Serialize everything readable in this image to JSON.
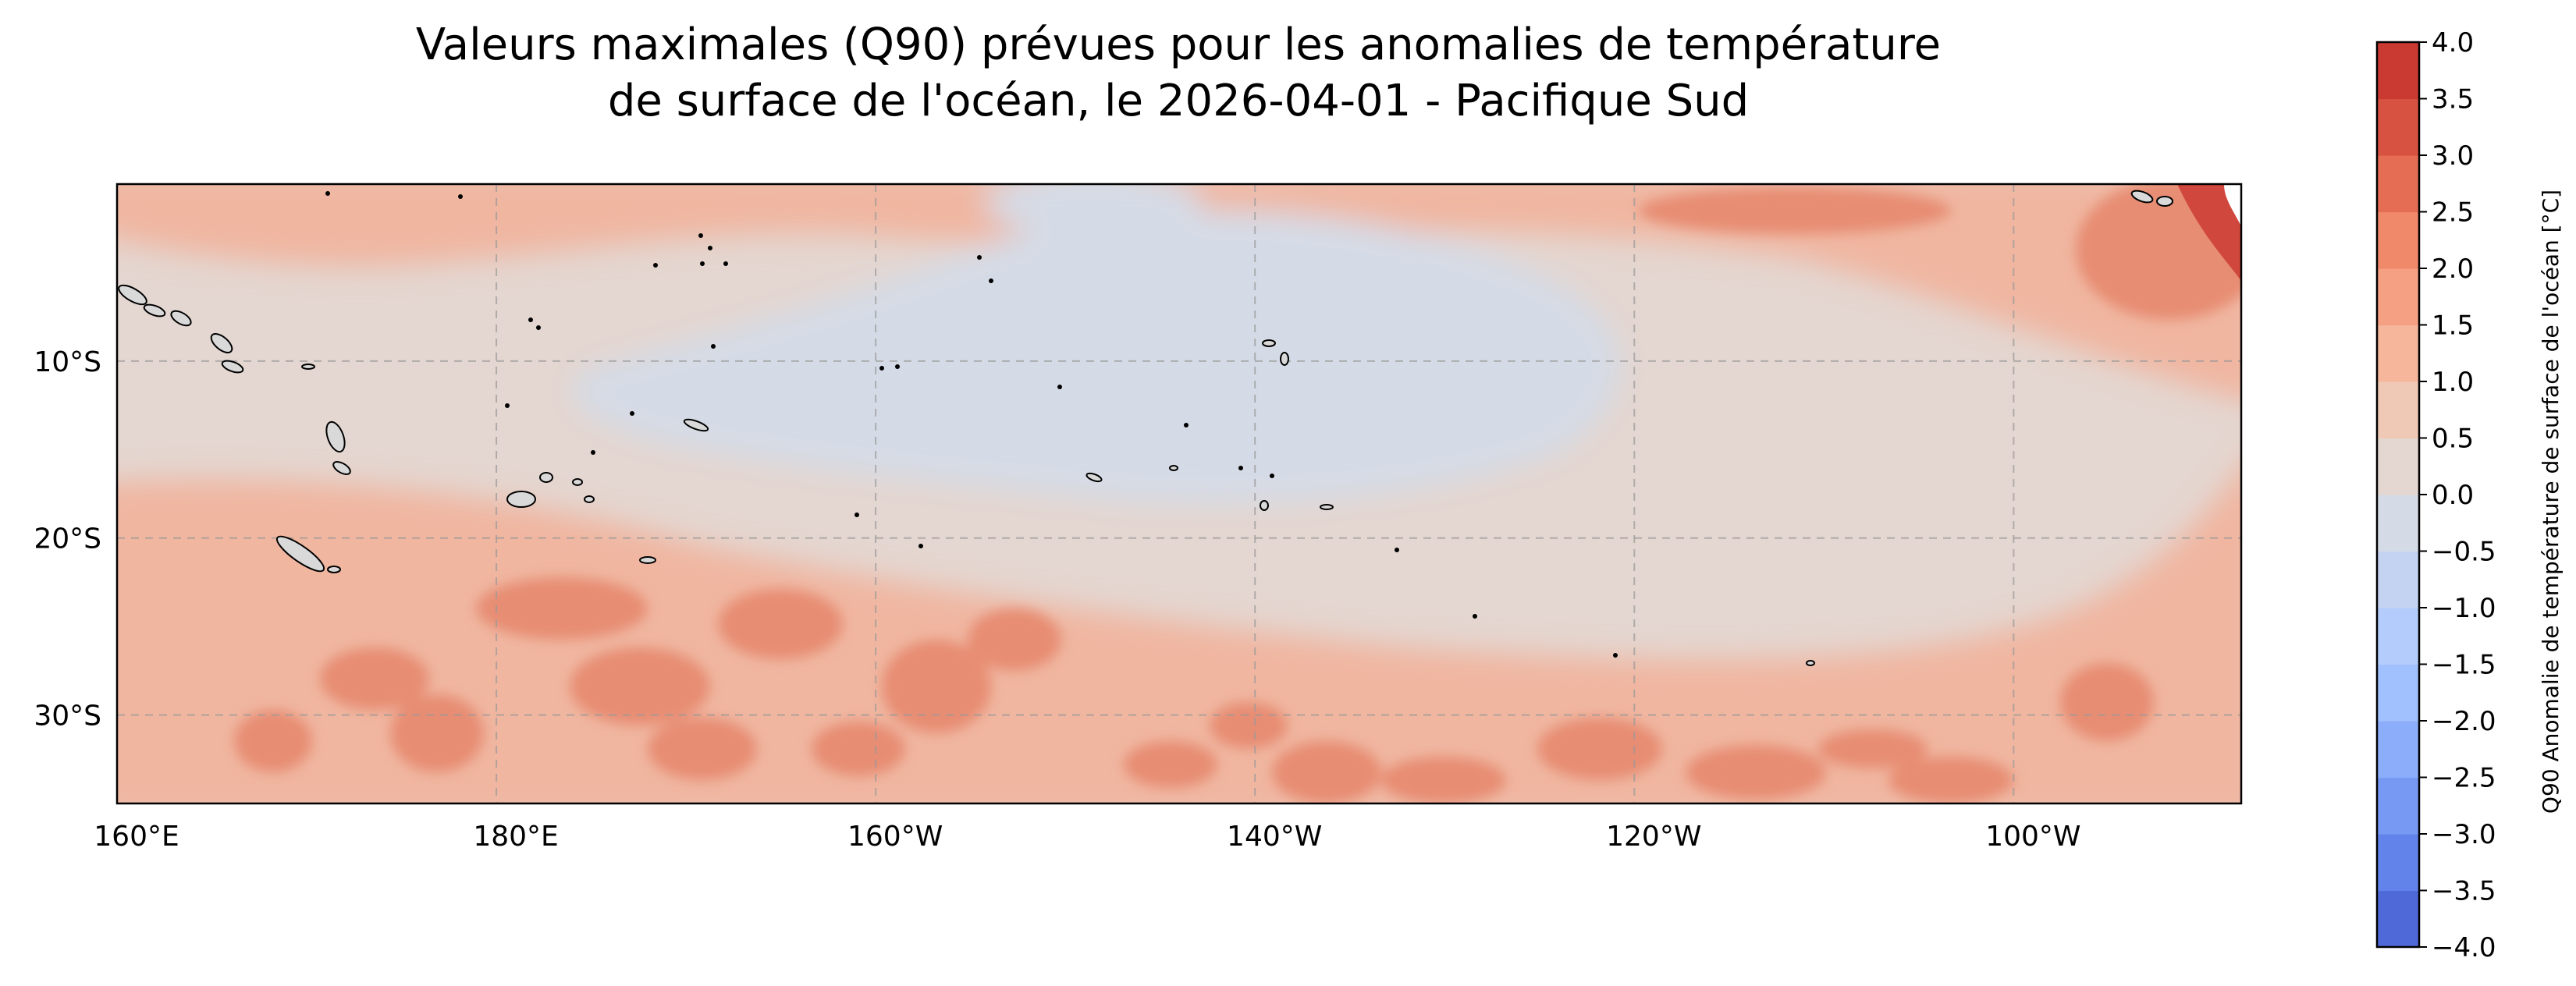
{
  "title": {
    "line1": "Valeurs maximales (Q90) prévues pour les anomalies de température",
    "line2": "de surface de l'océan, le 2026-04-01 - Pacifique Sud"
  },
  "map": {
    "projection": "PlateCarree",
    "lon_range": [
      160,
      272
    ],
    "lat_range": [
      -35,
      0
    ],
    "gridlines": true,
    "x_ticks": [
      {
        "lon": 160,
        "label": "160°E"
      },
      {
        "lon": 180,
        "label": "180°E"
      },
      {
        "lon": 200,
        "label": "160°W"
      },
      {
        "lon": 220,
        "label": "140°W"
      },
      {
        "lon": 240,
        "label": "120°W"
      },
      {
        "lon": 260,
        "label": "100°W"
      }
    ],
    "y_ticks": [
      {
        "lat": -10,
        "label": "10°S"
      },
      {
        "lat": -20,
        "label": "20°S"
      },
      {
        "lat": -30,
        "label": "30°S"
      }
    ],
    "regions": [
      {
        "name": "background",
        "color": "#e4d6d0"
      },
      {
        "name": "cool-equatorial-tongue",
        "color": "#d5dbe6"
      },
      {
        "name": "warm-southern-band",
        "color": "#f0b6a0"
      },
      {
        "name": "very-warm-eddies",
        "color": "#e78d73"
      },
      {
        "name": "coastal-maximum",
        "color": "#d0473e"
      }
    ]
  },
  "colorbar": {
    "label": "Q90 Anomalie de température de surface de l'océan [°C]",
    "vmin": -4.0,
    "vmax": 4.0,
    "step": 0.5,
    "tick_labels": [
      "−4.0",
      "−3.5",
      "−3.0",
      "−2.5",
      "−2.0",
      "−1.5",
      "−1.0",
      "−0.5",
      "0.0",
      "0.5",
      "1.0",
      "1.5",
      "2.0",
      "2.5",
      "3.0",
      "3.5",
      "4.0"
    ],
    "colors": [
      "#4f69d9",
      "#6283e9",
      "#7799f3",
      "#8caefa",
      "#a1c0fe",
      "#b4ccfb",
      "#c5d3f3",
      "#d5dbe6",
      "#e4d6d0",
      "#efc8b6",
      "#f6b69c",
      "#f5a083",
      "#f0886a",
      "#e56d53",
      "#d85241",
      "#cb3a32"
    ]
  }
}
